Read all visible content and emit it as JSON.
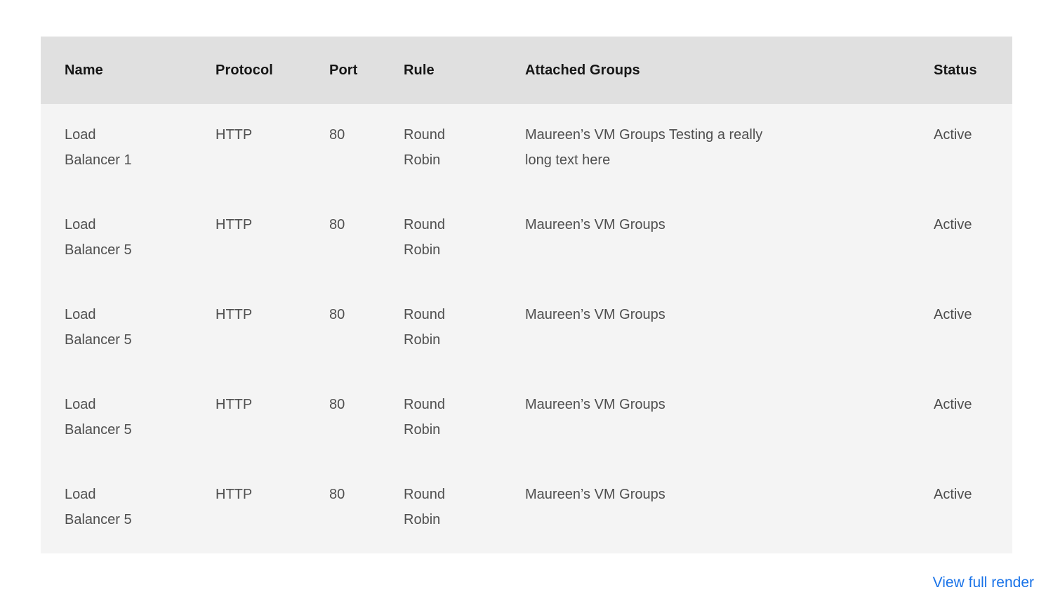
{
  "table": {
    "headers": [
      "Name",
      "Protocol",
      "Port",
      "Rule",
      "Attached Groups",
      "Status"
    ],
    "rows": [
      {
        "name": "Load Balancer 1",
        "protocol": "HTTP",
        "port": "80",
        "rule": "Round Robin",
        "attached_groups": "Maureen’s VM Groups Testing a really long text here",
        "status": "Active"
      },
      {
        "name": "Load Balancer 5",
        "protocol": "HTTP",
        "port": "80",
        "rule": "Round Robin",
        "attached_groups": "Maureen’s VM Groups",
        "status": "Active"
      },
      {
        "name": "Load Balancer 5",
        "protocol": "HTTP",
        "port": "80",
        "rule": "Round Robin",
        "attached_groups": "Maureen’s VM Groups",
        "status": "Active"
      },
      {
        "name": "Load Balancer 5",
        "protocol": "HTTP",
        "port": "80",
        "rule": "Round Robin",
        "attached_groups": "Maureen’s VM Groups",
        "status": "Active"
      },
      {
        "name": "Load Balancer 5",
        "protocol": "HTTP",
        "port": "80",
        "rule": "Round Robin",
        "attached_groups": "Maureen’s VM Groups",
        "status": "Active"
      }
    ]
  },
  "footer": {
    "view_full_render_label": "View full render"
  },
  "colors": {
    "header_background": "#e0e0e0",
    "body_background": "#f4f4f4",
    "header_text": "#161616",
    "body_text": "#4f4f4f",
    "link_blue": "#1a73e8"
  }
}
